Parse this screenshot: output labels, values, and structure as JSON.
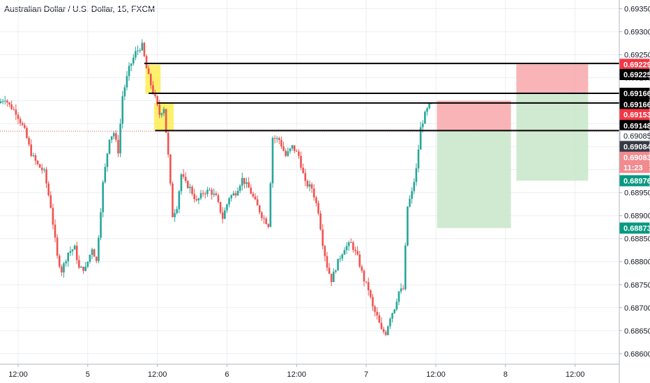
{
  "header": {
    "title": "Australian Dollar / U.S. Dollar, 15, FXCM"
  },
  "colors": {
    "up": "#26a69a",
    "down": "#ef5350",
    "grid": "#eceef2",
    "axis": "#b2b5be",
    "text": "#131722",
    "highlight": "#ffeb3b",
    "zoneRed": "#f7a7a9",
    "zoneGreen": "#c8e6c9"
  },
  "chart_data": {
    "type": "candlestick",
    "y_range": [
      0.68577,
      0.69369
    ],
    "x_range": [
      0,
      284
    ],
    "y_ticks": [
      "0.69350",
      "0.69300",
      "0.69250",
      "0.69200",
      "0.69150",
      "0.69100",
      "0.69050",
      "0.69000",
      "0.68950",
      "0.68900",
      "0.68850",
      "0.68800",
      "0.68750",
      "0.68700",
      "0.68650",
      "0.68600"
    ],
    "x_ticks": [
      {
        "label": "12:00",
        "x": 8
      },
      {
        "label": "5",
        "x": 40
      },
      {
        "label": "12:00",
        "x": 72
      },
      {
        "label": "6",
        "x": 104
      },
      {
        "label": "12:00",
        "x": 136
      },
      {
        "label": "7",
        "x": 168
      },
      {
        "label": "12:00",
        "x": 200
      },
      {
        "label": "8",
        "x": 232
      },
      {
        "label": "12:00",
        "x": 264
      }
    ],
    "anchors": [
      [
        0,
        0.69145
      ],
      [
        3,
        0.69155
      ],
      [
        5,
        0.6914
      ],
      [
        8,
        0.69125
      ],
      [
        12,
        0.69085
      ],
      [
        15,
        0.69035
      ],
      [
        18,
        0.6901
      ],
      [
        21,
        0.68995
      ],
      [
        24,
        0.6892
      ],
      [
        27,
        0.6881
      ],
      [
        29,
        0.6878
      ],
      [
        32,
        0.6882
      ],
      [
        35,
        0.6883
      ],
      [
        37,
        0.68785
      ],
      [
        40,
        0.68785
      ],
      [
        43,
        0.6883
      ],
      [
        45,
        0.688
      ],
      [
        48,
        0.6897
      ],
      [
        51,
        0.6907
      ],
      [
        53,
        0.6908
      ],
      [
        55,
        0.6904
      ],
      [
        57,
        0.6916
      ],
      [
        60,
        0.6922
      ],
      [
        63,
        0.69255
      ],
      [
        66,
        0.6927
      ],
      [
        68,
        0.6922
      ],
      [
        70,
        0.69185
      ],
      [
        72,
        0.69155
      ],
      [
        74,
        0.6912
      ],
      [
        76,
        0.69135
      ],
      [
        78,
        0.6903
      ],
      [
        80,
        0.689
      ],
      [
        82,
        0.6892
      ],
      [
        84,
        0.6899
      ],
      [
        86,
        0.6897
      ],
      [
        88,
        0.6896
      ],
      [
        91,
        0.6893
      ],
      [
        94,
        0.6895
      ],
      [
        97,
        0.68955
      ],
      [
        100,
        0.6894
      ],
      [
        103,
        0.68895
      ],
      [
        106,
        0.6894
      ],
      [
        109,
        0.6895
      ],
      [
        112,
        0.6898
      ],
      [
        115,
        0.6896
      ],
      [
        118,
        0.6893
      ],
      [
        121,
        0.689
      ],
      [
        124,
        0.6888
      ],
      [
        126,
        0.6907
      ],
      [
        129,
        0.69065
      ],
      [
        132,
        0.6903
      ],
      [
        135,
        0.6905
      ],
      [
        138,
        0.6903
      ],
      [
        141,
        0.6897
      ],
      [
        144,
        0.6896
      ],
      [
        147,
        0.6891
      ],
      [
        149,
        0.6884
      ],
      [
        151,
        0.6879
      ],
      [
        153,
        0.6876
      ],
      [
        156,
        0.688
      ],
      [
        159,
        0.6883
      ],
      [
        162,
        0.6884
      ],
      [
        165,
        0.6881
      ],
      [
        168,
        0.6876
      ],
      [
        170,
        0.6874
      ],
      [
        172,
        0.687
      ],
      [
        174,
        0.6868
      ],
      [
        176,
        0.6865
      ],
      [
        178,
        0.68645
      ],
      [
        180,
        0.6868
      ],
      [
        182,
        0.687
      ],
      [
        184,
        0.68735
      ],
      [
        186,
        0.6874
      ],
      [
        188,
        0.6892
      ],
      [
        190,
        0.6895
      ],
      [
        192,
        0.69
      ],
      [
        194,
        0.6909
      ],
      [
        196,
        0.6912
      ],
      [
        198,
        0.6914
      ]
    ],
    "price_labels": [
      {
        "text": "0.69229",
        "price": 0.69229,
        "bg": "#f23645",
        "fg": "#ffffff"
      },
      {
        "text": "0.69225",
        "price": 0.69207,
        "bg": "#000000",
        "fg": "#ffffff"
      },
      {
        "text": "0.69166",
        "price": 0.69166,
        "bg": "#000000",
        "fg": "#ffffff"
      },
      {
        "text": "0.69166",
        "price": 0.69142,
        "bg": "#000000",
        "fg": "#ffffff"
      },
      {
        "text": "0.69153",
        "price": 0.6912,
        "bg": "#f23645",
        "fg": "#ffffff"
      },
      {
        "text": "0.69148",
        "price": 0.69096,
        "bg": "#000000",
        "fg": "#ffffff"
      },
      {
        "text": "0.69085",
        "price": 0.69074,
        "bg": "#ffffff",
        "fg": "#131722"
      },
      {
        "text": "0.69084",
        "price": 0.6905,
        "bg": "#363a45",
        "fg": "#ffffff"
      },
      {
        "text": "0.69083",
        "price": 0.69027,
        "bg": "#f28b8f",
        "fg": "#ffffff"
      },
      {
        "text": "11:23",
        "price": 0.69005,
        "bg": "#f28b8f",
        "fg": "#ffffff"
      },
      {
        "text": "0.68976",
        "price": 0.68976,
        "bg": "#089981",
        "fg": "#ffffff"
      },
      {
        "text": "0.68873",
        "price": 0.68873,
        "bg": "#089981",
        "fg": "#ffffff"
      }
    ],
    "h_lines": [
      {
        "price": 0.69231,
        "x1": 66,
        "x2": 284
      },
      {
        "price": 0.69166,
        "x1": 68,
        "x2": 284
      },
      {
        "price": 0.69145,
        "x1": 72,
        "x2": 284
      },
      {
        "price": 0.69085,
        "x1": 71,
        "x2": 284
      }
    ],
    "highlight_boxes": [
      {
        "x1": 66.5,
        "x2": 73.5,
        "p1": 0.69228,
        "p2": 0.69165
      },
      {
        "x1": 70.5,
        "x2": 79.5,
        "p1": 0.69145,
        "p2": 0.69085
      }
    ],
    "zones": [
      {
        "x1": 200.5,
        "x2": 234.5,
        "p1": 0.6915,
        "p2": 0.69085,
        "kind": "red"
      },
      {
        "x1": 200.5,
        "x2": 234.5,
        "p1": 0.69085,
        "p2": 0.68873,
        "kind": "green"
      },
      {
        "x1": 237,
        "x2": 270,
        "p1": 0.69229,
        "p2": 0.69166,
        "kind": "red"
      },
      {
        "x1": 237,
        "x2": 270,
        "p1": 0.69166,
        "p2": 0.68976,
        "kind": "green"
      }
    ],
    "current_price": 0.69084
  }
}
